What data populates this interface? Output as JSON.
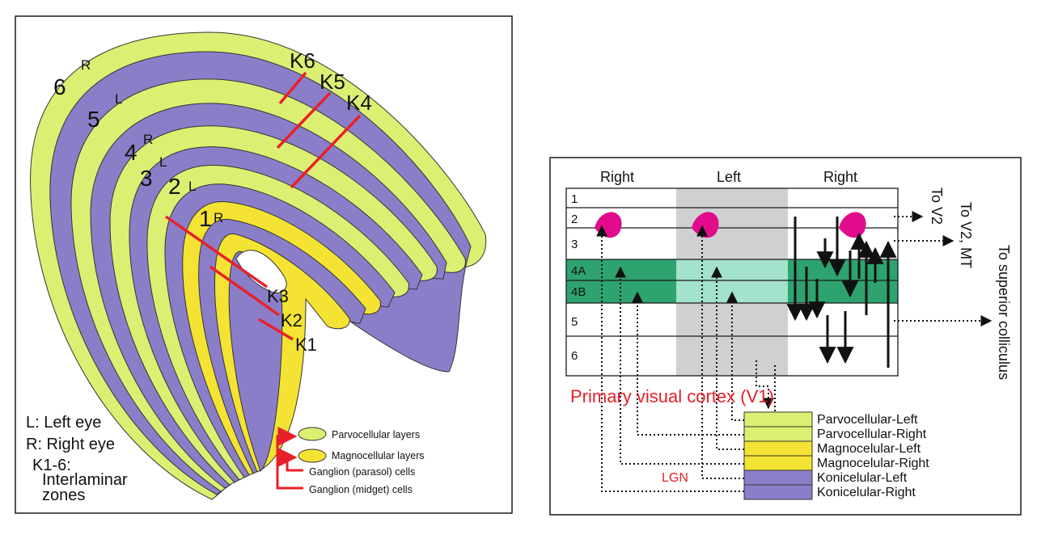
{
  "colors": {
    "parvo": "#dcef72",
    "magno": "#f4e332",
    "konio": "#8b7ec8",
    "green": "#2ea36f",
    "green_light": "#a3e2cc",
    "gray_band": "#d0cfd2",
    "blob": "#e10b8c",
    "red": "#e8202a",
    "outline": "#1a1a1a"
  },
  "lgn": {
    "layer_numbers": [
      "6",
      "5",
      "4",
      "3",
      "2",
      "1"
    ],
    "layer_eyes": [
      "R",
      "L",
      "R",
      "L",
      "L",
      "R"
    ],
    "interlaminar": [
      "K6",
      "K5",
      "K4",
      "K3",
      "K2",
      "K1"
    ],
    "key": [
      "L: Left eye",
      "R: Right eye",
      "K1-6:",
      "Interlaminar",
      "zones"
    ],
    "legend": [
      "Parvocellular layers",
      "Magnocellular layers",
      "Ganglion (parasol) cells",
      "Ganglion (midget) cells"
    ]
  },
  "cortex": {
    "columns": [
      "Right",
      "Left",
      "Right"
    ],
    "layers": [
      "1",
      "2",
      "3",
      "4A",
      "4B",
      "5",
      "6"
    ],
    "title": "Primary visual cortex  (V1)",
    "targets": [
      "To V2",
      "To V2, MT",
      "To superior colliculus"
    ],
    "lgn_label": "LGN",
    "lgn_layers": [
      "Parvocellular-Left",
      "Parvocellular-Right",
      "Magnocelular-Left",
      "Magnocelular-Right",
      "Konicelular-Left",
      "Konicelular-Right"
    ]
  }
}
